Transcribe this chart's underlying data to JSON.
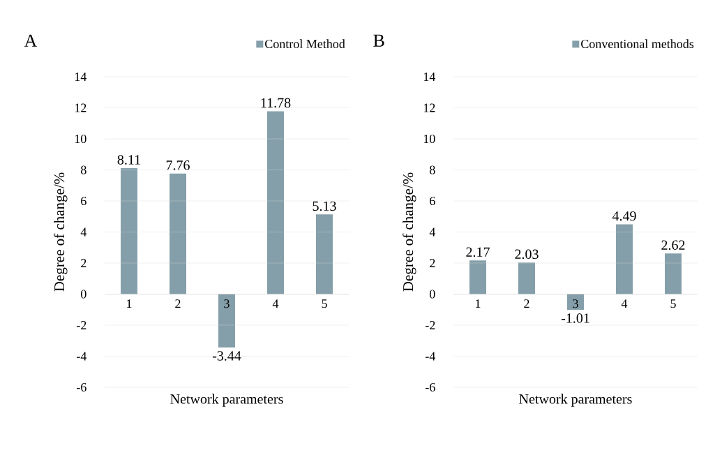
{
  "chart_data": [
    {
      "type": "bar",
      "title": "A",
      "xlabel": "Network parameters",
      "ylabel": "Degree of change/%",
      "categories": [
        "1",
        "2",
        "3",
        "4",
        "5"
      ],
      "series": [
        {
          "name": "Control Method",
          "color": "#849fa9",
          "values": [
            8.11,
            7.76,
            -3.44,
            11.78,
            5.13
          ]
        }
      ],
      "ylim": [
        -6,
        14
      ],
      "yticks": [
        -6,
        -4,
        -2,
        0,
        2,
        4,
        6,
        8,
        10,
        12,
        14
      ],
      "grid": "y",
      "legend": "top right",
      "data_labels": true
    },
    {
      "type": "bar",
      "title": "B",
      "xlabel": "Network parameters",
      "ylabel": "Degree of change/%",
      "categories": [
        "1",
        "2",
        "3",
        "4",
        "5"
      ],
      "series": [
        {
          "name": "Conventional methods",
          "color": "#849fa9",
          "values": [
            2.17,
            2.03,
            -1.01,
            4.49,
            2.62
          ]
        }
      ],
      "ylim": [
        -6,
        14
      ],
      "yticks": [
        -6,
        -4,
        -2,
        0,
        2,
        4,
        6,
        8,
        10,
        12,
        14
      ],
      "grid": "y",
      "legend": "top right",
      "data_labels": true
    }
  ]
}
